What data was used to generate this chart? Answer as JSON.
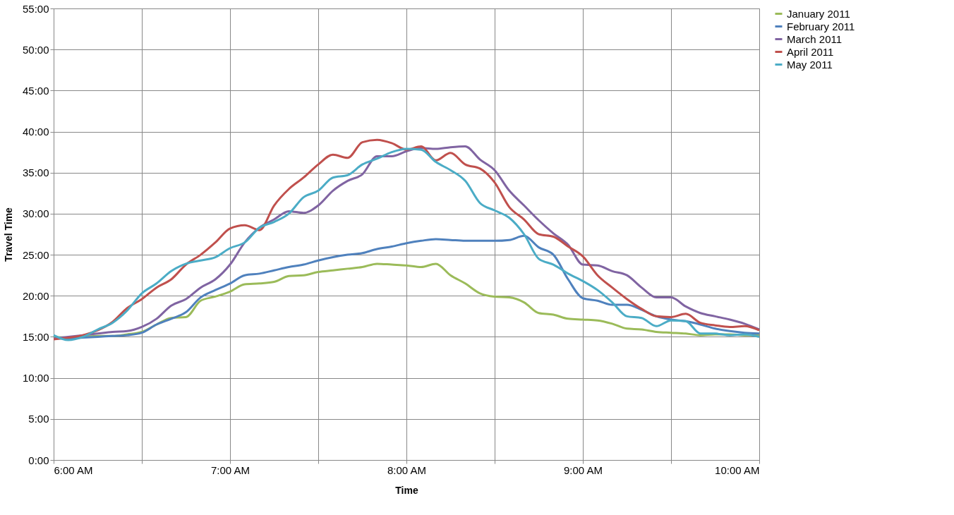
{
  "chart_data": {
    "type": "line",
    "xlabel": "Time",
    "ylabel": "Travel Time",
    "x": [
      6,
      6.0833,
      6.1667,
      6.25,
      6.3333,
      6.4167,
      6.5,
      6.5833,
      6.6667,
      6.75,
      6.8333,
      6.9167,
      7,
      7.0833,
      7.1667,
      7.25,
      7.3333,
      7.4167,
      7.5,
      7.5833,
      7.6667,
      7.75,
      7.8333,
      7.9167,
      8,
      8.0833,
      8.1667,
      8.25,
      8.3333,
      8.4167,
      8.5,
      8.5833,
      8.6667,
      8.75,
      8.8333,
      8.9167,
      9,
      9.0833,
      9.1667,
      9.25,
      9.3333,
      9.4167,
      9.5,
      9.5833,
      9.6667,
      9.75,
      9.8333,
      9.9167,
      10
    ],
    "series": [
      {
        "name": "January 2011",
        "color": "#9bbb59",
        "values": [
          15.0,
          14.9,
          15.0,
          15.1,
          15.1,
          15.3,
          15.6,
          16.5,
          17.3,
          17.4,
          19.4,
          19.9,
          20.5,
          21.4,
          21.5,
          21.7,
          22.4,
          22.5,
          22.9,
          23.1,
          23.3,
          23.5,
          23.9,
          23.8,
          23.7,
          23.5,
          23.9,
          22.5,
          21.5,
          20.3,
          19.9,
          19.8,
          19.2,
          17.9,
          17.7,
          17.2,
          17.1,
          17.0,
          16.6,
          16.0,
          15.9,
          15.6,
          15.5,
          15.4,
          15.2,
          15.3,
          15.3,
          15.2,
          15.2
        ]
      },
      {
        "name": "February 2011",
        "color": "#4f81bd",
        "values": [
          14.8,
          14.8,
          14.9,
          15.0,
          15.1,
          15.2,
          15.5,
          16.5,
          17.2,
          18.0,
          19.8,
          20.7,
          21.5,
          22.5,
          22.7,
          23.1,
          23.5,
          23.8,
          24.3,
          24.7,
          25.0,
          25.2,
          25.7,
          26.0,
          26.4,
          26.7,
          26.9,
          26.8,
          26.7,
          26.7,
          26.7,
          26.8,
          27.3,
          25.9,
          25.0,
          22.0,
          19.7,
          19.4,
          18.9,
          18.9,
          18.3,
          17.5,
          17.1,
          16.9,
          16.5,
          16.0,
          15.7,
          15.5,
          15.4
        ]
      },
      {
        "name": "March 2011",
        "color": "#8064a2",
        "values": [
          14.8,
          15.0,
          15.2,
          15.4,
          15.6,
          15.7,
          16.2,
          17.2,
          18.8,
          19.6,
          21.0,
          22.0,
          23.8,
          26.5,
          28.3,
          29.3,
          30.3,
          30.1,
          31.0,
          32.8,
          34.0,
          34.8,
          37.0,
          37.0,
          37.6,
          38.0,
          37.9,
          38.1,
          38.2,
          36.6,
          35.3,
          32.8,
          31.0,
          29.2,
          27.6,
          26.2,
          23.8,
          23.7,
          23.0,
          22.5,
          21.0,
          19.8,
          19.8,
          18.7,
          17.9,
          17.5,
          17.1,
          16.6,
          15.9
        ]
      },
      {
        "name": "April 2011",
        "color": "#c0504d",
        "values": [
          14.7,
          14.9,
          15.2,
          15.8,
          16.8,
          18.5,
          19.6,
          21.0,
          22.0,
          23.8,
          25.0,
          26.5,
          28.2,
          28.6,
          28.0,
          31.0,
          33.0,
          34.4,
          36.0,
          37.2,
          36.8,
          38.7,
          39.0,
          38.6,
          37.8,
          38.2,
          36.5,
          37.4,
          36.0,
          35.5,
          33.8,
          30.8,
          29.3,
          27.5,
          27.2,
          26.0,
          24.8,
          22.5,
          21.0,
          19.6,
          18.4,
          17.5,
          17.4,
          17.8,
          16.7,
          16.4,
          16.2,
          16.3,
          15.8
        ]
      },
      {
        "name": "May 2011",
        "color": "#4bacc6",
        "values": [
          15.2,
          14.6,
          15.0,
          15.9,
          16.7,
          18.2,
          20.3,
          21.5,
          23.0,
          23.9,
          24.3,
          24.7,
          25.8,
          26.5,
          28.3,
          29.0,
          30.0,
          32.0,
          32.8,
          34.4,
          34.7,
          36.0,
          36.7,
          37.5,
          37.9,
          37.8,
          36.3,
          35.3,
          34.0,
          31.3,
          30.4,
          29.5,
          27.5,
          24.5,
          23.8,
          22.7,
          21.8,
          20.7,
          19.2,
          17.5,
          17.3,
          16.3,
          17.0,
          16.9,
          15.4,
          15.4,
          15.2,
          15.3,
          15.0
        ]
      }
    ],
    "xlim": [
      6,
      10
    ],
    "xticks": [
      {
        "value": 6,
        "label": "6:00 AM"
      },
      {
        "value": 6.5,
        "label": null
      },
      {
        "value": 7,
        "label": "7:00 AM"
      },
      {
        "value": 7.5,
        "label": null
      },
      {
        "value": 8,
        "label": "8:00 AM"
      },
      {
        "value": 8.5,
        "label": null
      },
      {
        "value": 9,
        "label": "9:00 AM"
      },
      {
        "value": 9.5,
        "label": null
      },
      {
        "value": 10,
        "label": "10:00 AM"
      }
    ],
    "ylim": [
      0,
      55
    ],
    "yticks": [
      {
        "value": 0,
        "label": "0:00"
      },
      {
        "value": 5,
        "label": "5:00"
      },
      {
        "value": 10,
        "label": "10:00"
      },
      {
        "value": 15,
        "label": "15:00"
      },
      {
        "value": 20,
        "label": "20:00"
      },
      {
        "value": 25,
        "label": "25:00"
      },
      {
        "value": 30,
        "label": "30:00"
      },
      {
        "value": 35,
        "label": "35:00"
      },
      {
        "value": 40,
        "label": "40:00"
      },
      {
        "value": 45,
        "label": "45:00"
      },
      {
        "value": 50,
        "label": "50:00"
      },
      {
        "value": 55,
        "label": "55:00"
      }
    ],
    "grid": true,
    "legend": "right",
    "marker": "none",
    "line_style": "solid"
  }
}
